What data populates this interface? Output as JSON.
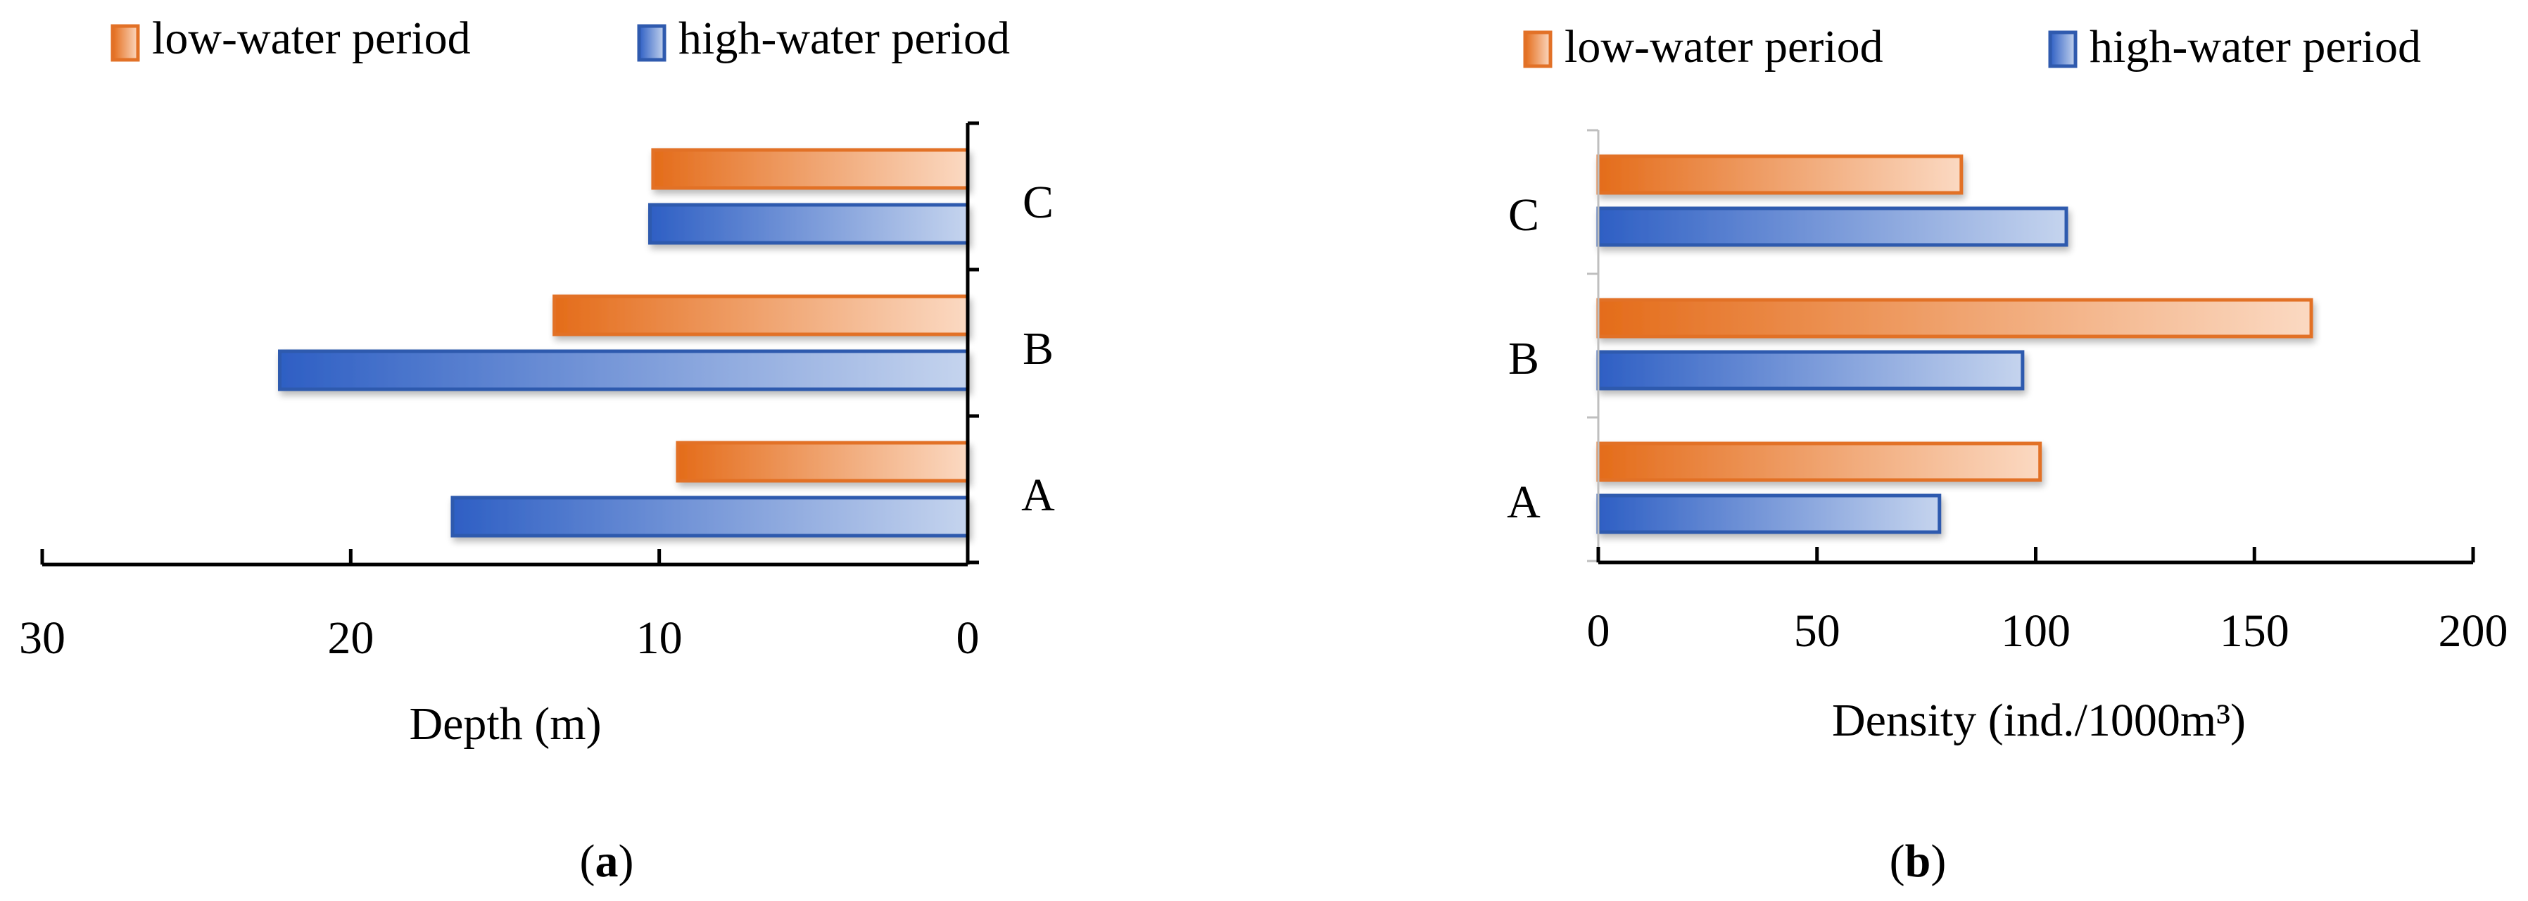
{
  "colors": {
    "low_dark": "#E46C1A",
    "low_light": "#FBD9C2",
    "low_border": "#E27127",
    "high_dark": "#2E5FC4",
    "high_light": "#C5D4EE",
    "high_border": "#2F5AAE",
    "axis": "#000000",
    "minor_axis": "#BFBFBF"
  },
  "chart_data": [
    {
      "type": "bar",
      "orientation": "horizontal",
      "x_direction": "reversed",
      "panel_label": "a",
      "title": "",
      "xlabel": "Depth (m)",
      "ylabel": "",
      "categories": [
        "A",
        "B",
        "C"
      ],
      "xlim": [
        0,
        30
      ],
      "xticks": [
        "0",
        "10",
        "20",
        "30"
      ],
      "series": [
        {
          "name": "low-water period",
          "values": [
            9.4,
            13.4,
            10.2
          ]
        },
        {
          "name": "high-water period",
          "values": [
            16.7,
            22.3,
            10.3
          ]
        }
      ],
      "legend": "top"
    },
    {
      "type": "bar",
      "orientation": "horizontal",
      "x_direction": "normal",
      "panel_label": "b",
      "title": "",
      "xlabel": "Density (ind./1000m³)",
      "ylabel": "",
      "categories": [
        "A",
        "B",
        "C"
      ],
      "xlim": [
        0,
        200
      ],
      "xticks": [
        "0",
        "50",
        "100",
        "150",
        "200"
      ],
      "series": [
        {
          "name": "low-water period",
          "values": [
            101,
            163,
            83
          ]
        },
        {
          "name": "high-water period",
          "values": [
            78,
            97,
            107
          ]
        }
      ],
      "legend": "top"
    }
  ]
}
